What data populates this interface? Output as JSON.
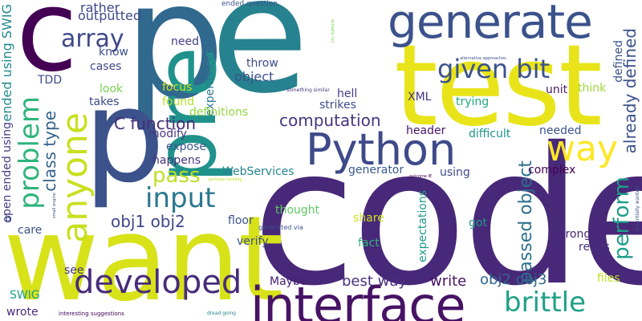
{
  "words": [
    {
      "text": "code",
      "color": "#482878"
    },
    {
      "text": "want",
      "color": "#d8e219"
    },
    {
      "text": "test",
      "color": "#e8e419"
    },
    {
      "text": "p",
      "color": "#31688e"
    },
    {
      "text": "e",
      "color": "#26828e"
    },
    {
      "text": "c",
      "color": "#440154"
    },
    {
      "text": "p",
      "color": "#3b528b"
    },
    {
      "text": "pre",
      "color": "#20928c"
    },
    {
      "text": "interface",
      "color": "#471365"
    },
    {
      "text": "generate",
      "color": "#3b528b"
    },
    {
      "text": "Python",
      "color": "#3e4a89"
    },
    {
      "text": "anyone",
      "color": "#c8e020"
    },
    {
      "text": "way",
      "color": "#fde725"
    },
    {
      "text": "developed",
      "color": "#472c7a"
    },
    {
      "text": "problem",
      "color": "#2fb47c"
    },
    {
      "text": "input",
      "color": "#2a788e"
    },
    {
      "text": "given bit",
      "color": "#3b528b"
    },
    {
      "text": "array",
      "color": "#3e4989"
    },
    {
      "text": "brittle",
      "color": "#1fa187"
    },
    {
      "text": "perform",
      "color": "#1f9e89"
    },
    {
      "text": "pass",
      "color": "#bddf26"
    },
    {
      "text": "C function",
      "color": "#472d7b"
    },
    {
      "text": "class type",
      "color": "#33628d"
    },
    {
      "text": "computation",
      "color": "#453781"
    },
    {
      "text": "obj1 obj2",
      "color": "#3f4788"
    },
    {
      "text": "passed object",
      "color": "#2c718e"
    },
    {
      "text": "already defined",
      "color": "#3b528b"
    },
    {
      "text": "best way",
      "color": "#472f7d"
    },
    {
      "text": "write",
      "color": "#471164"
    },
    {
      "text": "obj2 obj3",
      "color": "#31688e"
    },
    {
      "text": "defined",
      "color": "#3a548c"
    },
    {
      "text": "object",
      "color": "#3b528b"
    },
    {
      "text": "outputted",
      "color": "#3e4a89"
    },
    {
      "text": "rather",
      "color": "#3f4889"
    },
    {
      "text": "need",
      "color": "#433d84"
    },
    {
      "text": "ended using SWIG",
      "color": "#23898e"
    },
    {
      "text": "open ended using",
      "color": "#433e85"
    },
    {
      "text": "throw",
      "color": "#3e4c8a"
    },
    {
      "text": "hell",
      "color": "#443b84"
    },
    {
      "text": "strikes",
      "color": "#3d4d8a"
    },
    {
      "text": "XML",
      "color": "#46337f"
    },
    {
      "text": "trying",
      "color": "#22a884"
    },
    {
      "text": "unit",
      "color": "#481b6d"
    },
    {
      "text": "think",
      "color": "#9dd93b"
    },
    {
      "text": "header",
      "color": "#481668"
    },
    {
      "text": "difficult",
      "color": "#1f958b"
    },
    {
      "text": "needed",
      "color": "#3b528b"
    },
    {
      "text": "focus",
      "color": "#d2e21b"
    },
    {
      "text": "found",
      "color": "#b5de2b"
    },
    {
      "text": "experiences",
      "color": "#2a788e"
    },
    {
      "text": "takes",
      "color": "#3e4989"
    },
    {
      "text": "look",
      "color": "#7ad151"
    },
    {
      "text": "cases",
      "color": "#3f4788"
    },
    {
      "text": "know",
      "color": "#3d4e8a"
    },
    {
      "text": "TDD",
      "color": "#3e4a89"
    },
    {
      "text": "modify",
      "color": "#453882"
    },
    {
      "text": "expose",
      "color": "#3a538b"
    },
    {
      "text": "happens",
      "color": "#46327e"
    },
    {
      "text": "definitions",
      "color": "#95d840"
    },
    {
      "text": "WebServices",
      "color": "#25848e"
    },
    {
      "text": "generator",
      "color": "#38598c"
    },
    {
      "text": "using",
      "color": "#3e4a89"
    },
    {
      "text": "complex",
      "color": "#440154"
    },
    {
      "text": "thought",
      "color": "#5ec962"
    },
    {
      "text": "floor",
      "color": "#3b528b"
    },
    {
      "text": "share",
      "color": "#cae11f"
    },
    {
      "text": "verify",
      "color": "#3b528b"
    },
    {
      "text": "fact",
      "color": "#2fb47c"
    },
    {
      "text": "got",
      "color": "#1f9a8a"
    },
    {
      "text": "expectations",
      "color": "#1e9b8a"
    },
    {
      "text": "wrong",
      "color": "#482677"
    },
    {
      "text": "reads",
      "color": "#472f7d"
    },
    {
      "text": "files",
      "color": "#c0df25"
    },
    {
      "text": "Maybe",
      "color": "#482173"
    },
    {
      "text": "SWIG",
      "color": "#1fa088"
    },
    {
      "text": "wrote",
      "color": "#472c7a"
    },
    {
      "text": "see",
      "color": "#453781"
    },
    {
      "text": "care",
      "color": "#3b528b"
    },
    {
      "text": "b",
      "color": "#3b528b"
    },
    {
      "text": "ended question",
      "color": "#3b528b"
    },
    {
      "text": "something similar",
      "color": "#46327e"
    },
    {
      "text": "actually run",
      "color": "#7ad151"
    },
    {
      "text": "alternative approaches",
      "color": "#3b528b"
    },
    {
      "text": "perhaps tackling",
      "color": "#bddf26"
    },
    {
      "text": "outcome IE",
      "color": "#440154"
    },
    {
      "text": "generated via",
      "color": "#3b528b"
    },
    {
      "text": "small engine",
      "color": "#3e4a89"
    },
    {
      "text": "essentially wanted",
      "color": "#3b528b"
    },
    {
      "text": "interesting suggestions",
      "color": "#440154"
    },
    {
      "text": "dread going",
      "color": "#25848e"
    }
  ]
}
